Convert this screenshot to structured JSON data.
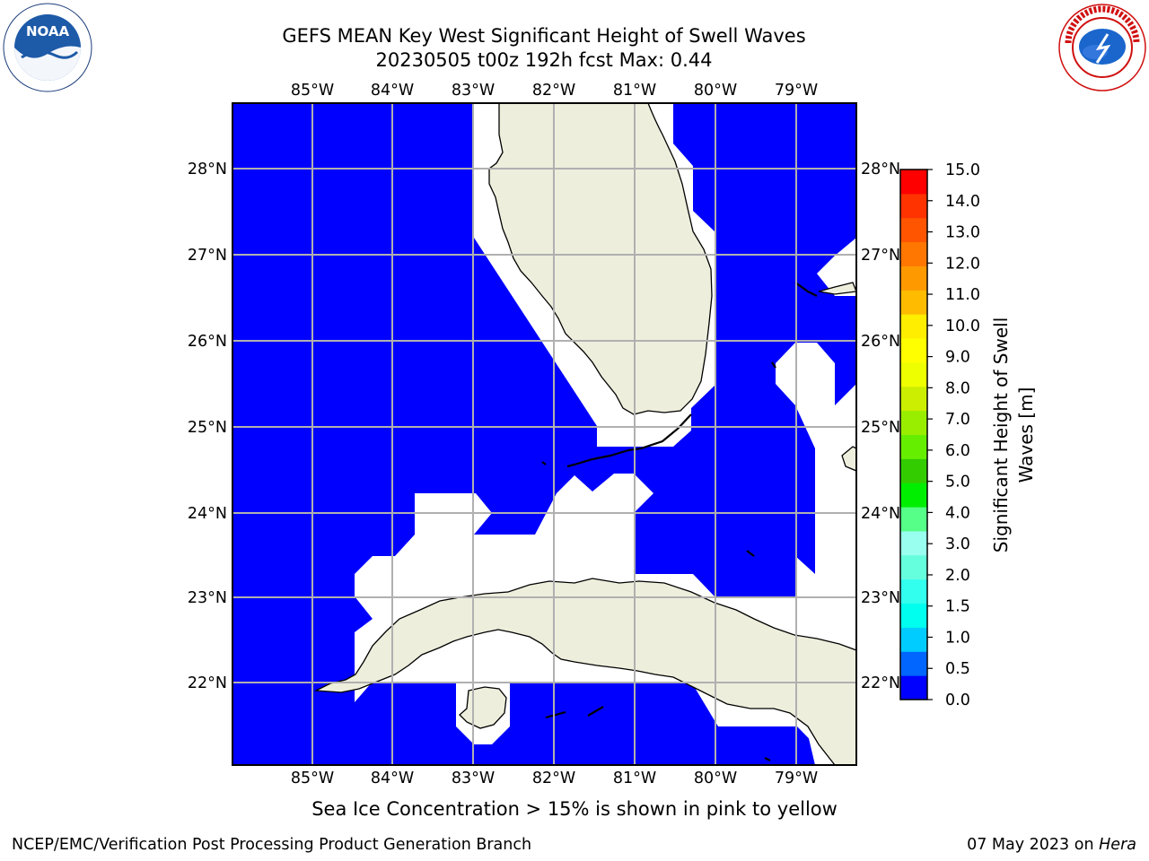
{
  "header": {
    "title_line1": "GEFS MEAN Key West Significant Height of Swell Waves",
    "title_line2": "20230505 t00z 192h fcst   Max: 0.44"
  },
  "map": {
    "lon_labels": [
      "85°W",
      "84°W",
      "83°W",
      "82°W",
      "81°W",
      "80°W",
      "79°W"
    ],
    "lat_labels": [
      "28°N",
      "27°N",
      "26°N",
      "25°N",
      "24°N",
      "23°N",
      "22°N"
    ],
    "lon_range": [
      -86.0,
      -78.25
    ],
    "lat_range": [
      21.0,
      28.8
    ],
    "ocean_color": "#0000ff",
    "land_color": "#eeeedd",
    "grid_color": "#b0b0b0"
  },
  "colorbar": {
    "title_line1": "Significant Height of Swell",
    "title_line2": "Waves [m]",
    "ticks": [
      "15.0",
      "14.0",
      "13.0",
      "12.0",
      "11.0",
      "10.0",
      "9.0",
      "8.0",
      "7.0",
      "6.0",
      "5.0",
      "4.0",
      "3.0",
      "2.0",
      "1.5",
      "1.0",
      "0.5",
      "0.0"
    ],
    "colors": [
      "#0000ff",
      "#0066ff",
      "#00ccff",
      "#00ffee",
      "#33ffee",
      "#66ffdd",
      "#99ffee",
      "#55ff88",
      "#00ee00",
      "#33cc00",
      "#66ee00",
      "#99ee00",
      "#ccee00",
      "#eeff00",
      "#ffff00",
      "#ffee00",
      "#ffbb00",
      "#ff9900",
      "#ff7700",
      "#ff5500",
      "#ff3300",
      "#ff0000"
    ]
  },
  "caption": "Sea Ice Concentration > 15% is shown in pink to yellow",
  "footer": {
    "left": "NCEP/EMC/Verification Post Processing Product Generation Branch",
    "date": "07 May 2023 on",
    "machine": "Hera"
  },
  "logos": {
    "left_icon": "noaa-logo",
    "left_text": "NOAA",
    "right_icon": "national-weather-service-logo",
    "right_text": "NATIONAL WEATHER SERVICE"
  }
}
